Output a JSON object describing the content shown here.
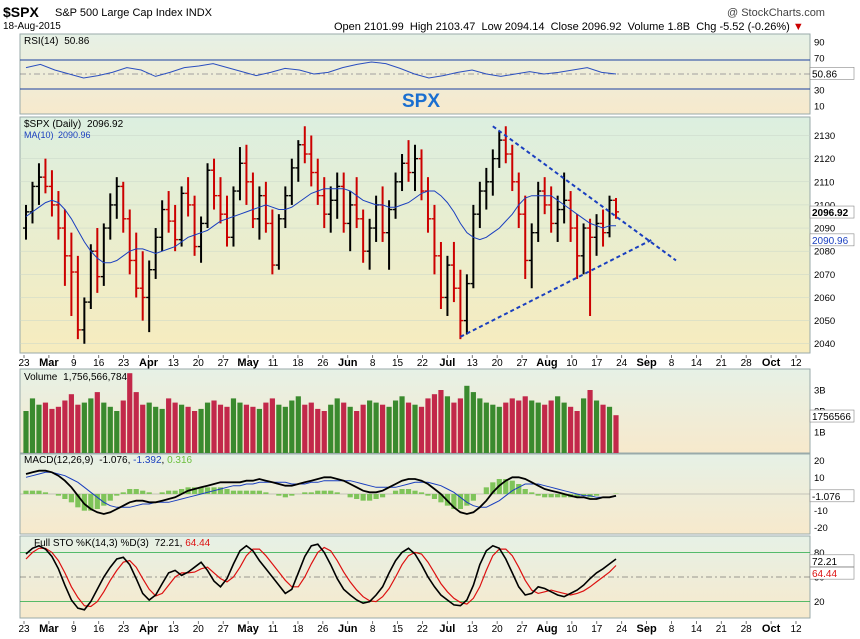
{
  "header": {
    "symbol": "$SPX",
    "name": "S&P 500 Large Cap Index",
    "exchange": "INDX",
    "date": "18-Aug-2015",
    "copyright": "@ StockCharts.com",
    "open_label": "Open",
    "open": "2101.99",
    "high_label": "High",
    "high": "2103.47",
    "low_label": "Low",
    "low": "2094.14",
    "close_label": "Close",
    "close": "2096.92",
    "volume_label": "Volume",
    "volume": "1.8B",
    "chg_label": "Chg",
    "chg": "-5.52 (-0.26%)",
    "chg_arrow": "▼"
  },
  "colors": {
    "up_bar": "#000000",
    "down_bar": "#cc0000",
    "ma_line": "#1a3fbf",
    "trendline": "#1a3fbf",
    "vol_up": "#3a8a2e",
    "vol_down": "#c2284a",
    "macd_hist": "#7fc45a",
    "stoch_k": "#000000",
    "stoch_d": "#dd1111",
    "price_bg_top": "#dff0dc",
    "price_bg_bottom": "#f6ecc0"
  },
  "chart_data": [
    {
      "panel": "rsi",
      "type": "line",
      "legend": "RSI(14)",
      "legend_value": "50.86",
      "ylim": [
        0,
        100
      ],
      "ticks": [
        "90",
        "70",
        "50",
        "30",
        "10"
      ],
      "last_label": "50.86",
      "annotation": "SPX",
      "values": [
        58,
        62,
        55,
        50,
        45,
        48,
        52,
        58,
        55,
        47,
        52,
        58,
        60,
        63,
        58,
        53,
        48,
        52,
        57,
        55,
        50,
        52,
        58,
        62,
        65,
        63,
        57,
        50,
        45,
        48,
        52,
        55,
        50,
        47,
        50,
        53,
        50,
        52,
        55,
        58,
        52,
        50
      ]
    },
    {
      "panel": "price",
      "type": "ohlc",
      "title": "$SPX (Daily)",
      "title_value": "2096.92",
      "ma_label": "MA(10)",
      "ma_value": "2090.96",
      "ylim": [
        2036,
        2138
      ],
      "yticks": [
        "2130",
        "2120",
        "2110",
        "2100",
        "2090",
        "2080",
        "2070",
        "2060",
        "2050",
        "2040"
      ],
      "last_close_label": "2096.92",
      "ma_last_label": "2090.96",
      "xticks": [
        "23",
        "Mar",
        "9",
        "16",
        "23",
        "Apr",
        "13",
        "20",
        "27",
        "May",
        "11",
        "18",
        "26",
        "Jun",
        "8",
        "15",
        "22",
        "Jul",
        "13",
        "20",
        "27",
        "Aug",
        "10",
        "17",
        "24",
        "Sep",
        "8",
        "14",
        "21",
        "28",
        "Oct",
        "12"
      ],
      "ohlc": [
        [
          2090,
          2100,
          2085,
          2097
        ],
        [
          2097,
          2110,
          2092,
          2108
        ],
        [
          2108,
          2118,
          2100,
          2112
        ],
        [
          2112,
          2120,
          2105,
          2108
        ],
        [
          2108,
          2115,
          2095,
          2100
        ],
        [
          2100,
          2106,
          2085,
          2090
        ],
        [
          2090,
          2098,
          2065,
          2078
        ],
        [
          2078,
          2088,
          2052,
          2071
        ],
        [
          2071,
          2078,
          2042,
          2046
        ],
        [
          2046,
          2060,
          2040,
          2058
        ],
        [
          2058,
          2083,
          2055,
          2080
        ],
        [
          2080,
          2090,
          2062,
          2069
        ],
        [
          2069,
          2092,
          2065,
          2090
        ],
        [
          2090,
          2105,
          2085,
          2100
        ],
        [
          2100,
          2112,
          2094,
          2108
        ],
        [
          2108,
          2110,
          2088,
          2094
        ],
        [
          2094,
          2098,
          2070,
          2076
        ],
        [
          2076,
          2088,
          2060,
          2064
        ],
        [
          2064,
          2080,
          2050,
          2060
        ],
        [
          2060,
          2076,
          2045,
          2072
        ],
        [
          2072,
          2090,
          2068,
          2086
        ],
        [
          2086,
          2102,
          2080,
          2098
        ],
        [
          2098,
          2106,
          2088,
          2093
        ],
        [
          2093,
          2100,
          2080,
          2085
        ],
        [
          2085,
          2108,
          2082,
          2105
        ],
        [
          2105,
          2112,
          2095,
          2100
        ],
        [
          2100,
          2104,
          2078,
          2082
        ],
        [
          2082,
          2095,
          2075,
          2092
        ],
        [
          2092,
          2118,
          2090,
          2115
        ],
        [
          2115,
          2120,
          2098,
          2104
        ],
        [
          2104,
          2112,
          2092,
          2096
        ],
        [
          2096,
          2104,
          2082,
          2086
        ],
        [
          2086,
          2108,
          2082,
          2106
        ],
        [
          2106,
          2125,
          2102,
          2118
        ],
        [
          2118,
          2126,
          2100,
          2110
        ],
        [
          2110,
          2114,
          2090,
          2094
        ],
        [
          2094,
          2108,
          2085,
          2104
        ],
        [
          2104,
          2110,
          2088,
          2092
        ],
        [
          2092,
          2098,
          2070,
          2074
        ],
        [
          2074,
          2096,
          2072,
          2094
        ],
        [
          2094,
          2108,
          2090,
          2104
        ],
        [
          2104,
          2120,
          2100,
          2116
        ],
        [
          2116,
          2128,
          2110,
          2126
        ],
        [
          2126,
          2134,
          2118,
          2122
        ],
        [
          2122,
          2130,
          2108,
          2114
        ],
        [
          2114,
          2120,
          2100,
          2104
        ],
        [
          2104,
          2112,
          2090,
          2096
        ],
        [
          2096,
          2108,
          2088,
          2102
        ],
        [
          2102,
          2114,
          2094,
          2108
        ],
        [
          2108,
          2114,
          2088,
          2092
        ],
        [
          2092,
          2106,
          2080,
          2100
        ],
        [
          2100,
          2112,
          2090,
          2094
        ],
        [
          2094,
          2098,
          2075,
          2080
        ],
        [
          2080,
          2094,
          2072,
          2090
        ],
        [
          2090,
          2104,
          2084,
          2100
        ],
        [
          2100,
          2108,
          2084,
          2088
        ],
        [
          2088,
          2102,
          2072,
          2098
        ],
        [
          2098,
          2114,
          2094,
          2110
        ],
        [
          2110,
          2122,
          2106,
          2118
        ],
        [
          2118,
          2128,
          2110,
          2114
        ],
        [
          2114,
          2126,
          2106,
          2120
        ],
        [
          2120,
          2124,
          2102,
          2106
        ],
        [
          2106,
          2112,
          2088,
          2094
        ],
        [
          2094,
          2100,
          2070,
          2078
        ],
        [
          2078,
          2084,
          2055,
          2060
        ],
        [
          2060,
          2078,
          2052,
          2074
        ],
        [
          2074,
          2084,
          2058,
          2064
        ],
        [
          2064,
          2072,
          2042,
          2050
        ],
        [
          2050,
          2070,
          2044,
          2066
        ],
        [
          2066,
          2100,
          2064,
          2096
        ],
        [
          2096,
          2110,
          2090,
          2106
        ],
        [
          2106,
          2116,
          2098,
          2110
        ],
        [
          2110,
          2124,
          2104,
          2120
        ],
        [
          2120,
          2132,
          2116,
          2128
        ],
        [
          2128,
          2134,
          2118,
          2122
        ],
        [
          2122,
          2126,
          2106,
          2110
        ],
        [
          2110,
          2114,
          2090,
          2096
        ],
        [
          2096,
          2104,
          2068,
          2076
        ],
        [
          2076,
          2092,
          2064,
          2088
        ],
        [
          2088,
          2110,
          2084,
          2106
        ],
        [
          2106,
          2112,
          2096,
          2100
        ],
        [
          2100,
          2108,
          2088,
          2092
        ],
        [
          2092,
          2104,
          2084,
          2098
        ],
        [
          2098,
          2114,
          2092,
          2102
        ],
        [
          2102,
          2106,
          2084,
          2090
        ],
        [
          2090,
          2096,
          2068,
          2078
        ],
        [
          2078,
          2092,
          2070,
          2090
        ],
        [
          2090,
          2094,
          2052,
          2086
        ],
        [
          2086,
          2096,
          2078,
          2092
        ],
        [
          2092,
          2098,
          2082,
          2088
        ],
        [
          2088,
          2104,
          2086,
          2102
        ],
        [
          2102,
          2103,
          2094,
          2097
        ]
      ],
      "ma10": [
        2095,
        2097,
        2099,
        2101,
        2102,
        2101,
        2098,
        2094,
        2089,
        2084,
        2080,
        2077,
        2075,
        2075,
        2076,
        2078,
        2080,
        2081,
        2081,
        2080,
        2079,
        2080,
        2081,
        2082,
        2084,
        2086,
        2087,
        2088,
        2089,
        2091,
        2093,
        2094,
        2095,
        2096,
        2097,
        2098,
        2099,
        2100,
        2099,
        2098,
        2098,
        2099,
        2101,
        2103,
        2105,
        2106,
        2107,
        2107,
        2107,
        2107,
        2106,
        2104,
        2102,
        2101,
        2100,
        2100,
        2099,
        2099,
        2100,
        2101,
        2103,
        2105,
        2106,
        2106,
        2104,
        2101,
        2097,
        2092,
        2088,
        2086,
        2085,
        2086,
        2088,
        2090,
        2093,
        2096,
        2100,
        2103,
        2104,
        2104,
        2104,
        2104,
        2102,
        2100,
        2098,
        2096,
        2094,
        2092,
        2091,
        2090,
        2091,
        2091
      ]
    },
    {
      "panel": "volume",
      "type": "bar",
      "legend": "Volume",
      "legend_value": "1,756,566,784",
      "ylim": [
        0,
        4
      ],
      "yticks": [
        "3B",
        "2B",
        "1B"
      ],
      "last_label": "1756566",
      "values": [
        2.0,
        2.6,
        2.3,
        2.4,
        2.1,
        2.2,
        2.5,
        2.8,
        2.3,
        2.4,
        2.6,
        2.9,
        2.4,
        2.2,
        2.0,
        2.5,
        3.8,
        2.9,
        2.3,
        2.4,
        2.2,
        2.1,
        2.6,
        2.4,
        2.3,
        2.2,
        2.0,
        2.1,
        2.4,
        2.5,
        2.3,
        2.2,
        2.6,
        2.4,
        2.3,
        2.2,
        2.1,
        2.4,
        2.6,
        2.3,
        2.2,
        2.5,
        2.7,
        2.3,
        2.4,
        2.1,
        2.0,
        2.3,
        2.6,
        2.4,
        2.2,
        2.0,
        2.3,
        2.5,
        2.4,
        2.3,
        2.2,
        2.5,
        2.7,
        2.4,
        2.3,
        2.2,
        2.6,
        2.8,
        3.0,
        2.7,
        2.4,
        2.6,
        3.2,
        2.9,
        2.6,
        2.4,
        2.3,
        2.2,
        2.4,
        2.6,
        2.5,
        2.7,
        2.5,
        2.4,
        2.3,
        2.5,
        2.7,
        2.4,
        2.2,
        2.0,
        2.6,
        3.0,
        2.5,
        2.3,
        2.2,
        1.8
      ]
    },
    {
      "panel": "macd",
      "type": "line",
      "legend": "MACD(12,26,9)",
      "macd_value": "-1.076",
      "signal_value": "-1.392",
      "hist_value": "0.316",
      "ylim": [
        -24,
        24
      ],
      "yticks": [
        "20",
        "10",
        "0",
        "-10",
        "-20"
      ],
      "last_label": "-1.076",
      "macd": [
        12,
        13,
        14,
        14,
        13,
        11,
        8,
        4,
        -1,
        -6,
        -9,
        -11,
        -12,
        -11,
        -9,
        -7,
        -5,
        -4,
        -4,
        -5,
        -5,
        -4,
        -3,
        -2,
        0,
        2,
        3,
        4,
        5,
        6,
        7,
        7,
        7,
        7,
        8,
        8,
        9,
        8,
        7,
        6,
        5,
        5,
        6,
        7,
        8,
        9,
        10,
        10,
        9,
        8,
        6,
        4,
        2,
        1,
        1,
        2,
        4,
        6,
        8,
        9,
        9,
        8,
        6,
        3,
        0,
        -4,
        -8,
        -11,
        -12,
        -11,
        -8,
        -4,
        1,
        5,
        8,
        10,
        10,
        9,
        7,
        5,
        3,
        2,
        1,
        0,
        -1,
        -2,
        -2,
        -3,
        -3,
        -2,
        -2,
        -1
      ],
      "signal": [
        10,
        11,
        12,
        13,
        13,
        12,
        11,
        9,
        7,
        4,
        1,
        -2,
        -5,
        -7,
        -8,
        -8,
        -8,
        -7,
        -6,
        -6,
        -5,
        -5,
        -5,
        -4,
        -3,
        -2,
        -1,
        0,
        1,
        2,
        3,
        4,
        5,
        5,
        6,
        6,
        7,
        7,
        7,
        7,
        7,
        6,
        6,
        6,
        7,
        7,
        8,
        8,
        8,
        8,
        8,
        7,
        6,
        5,
        4,
        4,
        4,
        4,
        5,
        6,
        7,
        7,
        7,
        6,
        5,
        3,
        1,
        -2,
        -5,
        -7,
        -8,
        -8,
        -6,
        -4,
        -1,
        2,
        4,
        6,
        6,
        6,
        5,
        4,
        3,
        2,
        1,
        0,
        -1,
        -1,
        -2,
        -2,
        -2,
        -1.4
      ],
      "hist": [
        2,
        2,
        2,
        1,
        0,
        -1,
        -3,
        -5,
        -8,
        -10,
        -10,
        -9,
        -7,
        -4,
        -1,
        1,
        3,
        3,
        2,
        1,
        0,
        1,
        2,
        2,
        3,
        4,
        4,
        4,
        4,
        4,
        4,
        3,
        2,
        2,
        2,
        2,
        2,
        1,
        0,
        -1,
        -2,
        -1,
        0,
        1,
        1,
        2,
        2,
        2,
        1,
        0,
        -2,
        -3,
        -4,
        -4,
        -3,
        -2,
        0,
        2,
        3,
        3,
        2,
        1,
        -1,
        -3,
        -5,
        -7,
        -9,
        -9,
        -7,
        -4,
        0,
        4,
        7,
        9,
        9,
        8,
        6,
        3,
        1,
        -1,
        -2,
        -2,
        -2,
        -2,
        -2,
        -2,
        -1,
        -2,
        -1,
        0,
        0,
        0.3
      ]
    },
    {
      "panel": "stochastic",
      "type": "line",
      "legend": "Full STO %K(14,3) %D(3)",
      "k_value": "72.21",
      "d_value": "64.44",
      "ylim": [
        0,
        100
      ],
      "yticks": [
        "80",
        "50",
        "20"
      ],
      "k_last_label": "72.21",
      "d_last_label": "64.44",
      "k": [
        78,
        85,
        88,
        84,
        75,
        60,
        40,
        22,
        12,
        10,
        20,
        35,
        50,
        62,
        72,
        74,
        65,
        48,
        30,
        22,
        28,
        42,
        55,
        58,
        52,
        56,
        62,
        68,
        58,
        45,
        38,
        48,
        66,
        82,
        88,
        82,
        70,
        60,
        50,
        40,
        30,
        35,
        55,
        75,
        88,
        90,
        80,
        65,
        48,
        35,
        28,
        22,
        18,
        20,
        28,
        38,
        55,
        70,
        80,
        85,
        78,
        65,
        50,
        38,
        28,
        22,
        16,
        15,
        22,
        40,
        65,
        82,
        88,
        85,
        72,
        55,
        38,
        28,
        30,
        38,
        36,
        32,
        28,
        26,
        30,
        34,
        40,
        48,
        55,
        60,
        66,
        72
      ],
      "d": [
        72,
        80,
        85,
        85,
        80,
        70,
        55,
        38,
        25,
        15,
        14,
        20,
        32,
        46,
        58,
        68,
        70,
        62,
        48,
        35,
        27,
        30,
        40,
        50,
        55,
        55,
        56,
        60,
        62,
        55,
        48,
        44,
        50,
        62,
        76,
        84,
        84,
        76,
        66,
        56,
        46,
        38,
        38,
        50,
        66,
        80,
        86,
        82,
        70,
        56,
        44,
        34,
        26,
        21,
        20,
        26,
        36,
        50,
        65,
        76,
        80,
        78,
        68,
        55,
        42,
        32,
        24,
        19,
        17,
        24,
        38,
        58,
        76,
        84,
        84,
        76,
        62,
        46,
        34,
        30,
        32,
        34,
        32,
        30,
        28,
        30,
        33,
        38,
        44,
        50,
        56,
        64
      ]
    }
  ]
}
